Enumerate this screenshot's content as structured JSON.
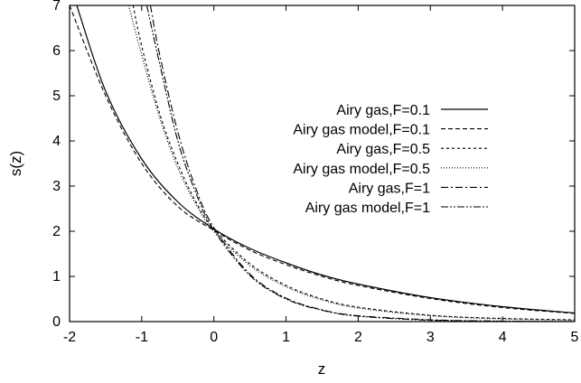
{
  "chart_data": {
    "type": "line",
    "title": "",
    "xlabel": "z",
    "ylabel": "s(z)",
    "xlim": [
      -2,
      5
    ],
    "ylim": [
      0,
      7
    ],
    "xticks": [
      -2,
      -1,
      0,
      1,
      2,
      3,
      4,
      5
    ],
    "yticks": [
      0,
      1,
      2,
      3,
      4,
      5,
      6,
      7
    ],
    "grid": false,
    "legend_position": "right",
    "series": [
      {
        "name": "Airy gas,F=0.1",
        "x": [
          -1.9,
          -1.5,
          -1.0,
          -0.5,
          0,
          0.5,
          1.0,
          1.5,
          2.0,
          3.0,
          4.0,
          5.0
        ],
        "y": [
          7.0,
          5.1,
          3.6,
          2.65,
          2.05,
          1.62,
          1.3,
          1.03,
          0.83,
          0.53,
          0.33,
          0.19
        ]
      },
      {
        "name": "Airy gas model,F=0.1",
        "x": [
          -2.0,
          -1.5,
          -1.0,
          -0.5,
          0,
          0.5,
          1.0,
          1.5,
          2.0,
          3.0,
          4.0,
          5.0
        ],
        "y": [
          7.0,
          5.0,
          3.5,
          2.55,
          2.02,
          1.58,
          1.26,
          1.0,
          0.8,
          0.51,
          0.31,
          0.18
        ]
      },
      {
        "name": "Airy gas,F=0.5",
        "x": [
          -1.12,
          -1.0,
          -0.75,
          -0.5,
          -0.25,
          0,
          0.5,
          1.0,
          1.5,
          2.0,
          3.0,
          4.0,
          5.0
        ],
        "y": [
          7.0,
          6.1,
          4.6,
          3.5,
          2.65,
          2.05,
          1.28,
          0.8,
          0.5,
          0.32,
          0.14,
          0.07,
          0.04
        ]
      },
      {
        "name": "Airy gas model,F=0.5",
        "x": [
          -1.18,
          -1.0,
          -0.75,
          -0.5,
          -0.25,
          0,
          0.5,
          1.0,
          1.5,
          2.0,
          3.0,
          4.0,
          5.0
        ],
        "y": [
          7.0,
          5.9,
          4.5,
          3.4,
          2.6,
          2.0,
          1.24,
          0.77,
          0.48,
          0.3,
          0.13,
          0.06,
          0.03
        ]
      },
      {
        "name": "Airy gas,F=1",
        "x": [
          -0.88,
          -0.75,
          -0.5,
          -0.25,
          0,
          0.5,
          1.0,
          1.5,
          2.0,
          3.0,
          4.0,
          5.0
        ],
        "y": [
          7.0,
          5.9,
          4.2,
          2.95,
          2.08,
          1.05,
          0.52,
          0.26,
          0.13,
          0.04,
          0.01,
          0.0
        ]
      },
      {
        "name": "Airy gas model,F=1",
        "x": [
          -0.93,
          -0.75,
          -0.5,
          -0.25,
          0,
          0.5,
          1.0,
          1.5,
          2.0,
          3.0,
          4.0,
          5.0
        ],
        "y": [
          7.0,
          5.7,
          4.0,
          2.85,
          2.02,
          1.02,
          0.5,
          0.25,
          0.12,
          0.03,
          0.01,
          0.0
        ]
      }
    ]
  }
}
